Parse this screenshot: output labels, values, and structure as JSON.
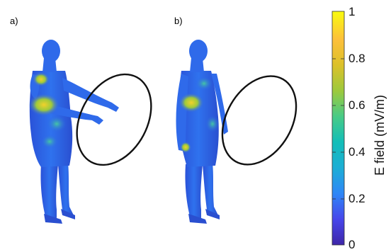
{
  "panels": [
    {
      "label": "a)"
    },
    {
      "label": "b)"
    }
  ],
  "colorbar": {
    "label": "E field (mV/m)",
    "ticks": [
      "1",
      "0.8",
      "0.6",
      "0.4",
      "0.2",
      "0"
    ],
    "colormap": "parula",
    "colors": [
      "#3e26a8",
      "#4746eb",
      "#2e87f7",
      "#1caed5",
      "#13beb8",
      "#48cb86",
      "#9dc93c",
      "#dcc12a",
      "#fdc03b",
      "#f9fb0e"
    ]
  },
  "figure": {
    "body_color": "#2d64e6",
    "hot_color": "#f2d12a",
    "warm_color": "#45c6a4",
    "ring_color": "#111111"
  }
}
